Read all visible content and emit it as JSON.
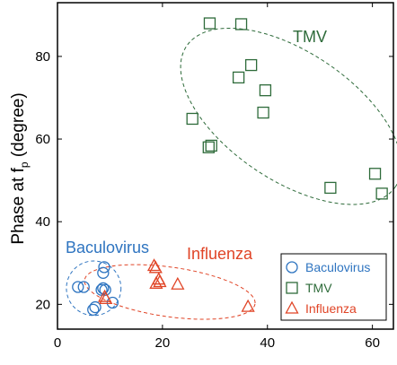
{
  "colors": {
    "baculovirus": "#2e74c0",
    "tmv": "#2e6b3a",
    "influenza": "#e04426",
    "axis": "#000000"
  },
  "chart_data": {
    "type": "scatter",
    "xlim": [
      0,
      64
    ],
    "ylim": [
      14,
      93
    ],
    "x_ticks": [
      0,
      20,
      40,
      60
    ],
    "y_ticks": [
      20,
      40,
      60,
      80
    ],
    "ylabel_main": "Phase at f",
    "ylabel_sub": "p",
    "ylabel_tail": " (degree)",
    "grid": false,
    "legend_placement": "bottom-right",
    "series": [
      {
        "name": "Baculovirus",
        "marker": "circle",
        "points": [
          [
            3.9,
            24.2
          ],
          [
            5.0,
            24.2
          ],
          [
            6.8,
            18.7
          ],
          [
            7.2,
            19.3
          ],
          [
            8.4,
            23.5
          ],
          [
            8.7,
            23.9
          ],
          [
            8.7,
            27.6
          ],
          [
            8.9,
            29.0
          ],
          [
            9.1,
            23.5
          ],
          [
            10.5,
            20.4
          ]
        ]
      },
      {
        "name": "TMV",
        "marker": "square",
        "points": [
          [
            25.7,
            64.9
          ],
          [
            28.8,
            58.0
          ],
          [
            29.0,
            88.0
          ],
          [
            29.3,
            58.4
          ],
          [
            34.5,
            74.9
          ],
          [
            35.0,
            87.8
          ],
          [
            36.9,
            77.9
          ],
          [
            39.2,
            66.4
          ],
          [
            39.6,
            71.8
          ],
          [
            52.0,
            48.2
          ],
          [
            60.5,
            51.6
          ],
          [
            61.8,
            46.8
          ]
        ]
      },
      {
        "name": "Influenza",
        "marker": "triangle",
        "points": [
          [
            9.0,
            21.8
          ],
          [
            9.2,
            21.3
          ],
          [
            18.4,
            29.3
          ],
          [
            18.7,
            28.8
          ],
          [
            18.8,
            25.0
          ],
          [
            19.3,
            26.0
          ],
          [
            19.5,
            25.4
          ],
          [
            22.9,
            24.8
          ],
          [
            36.3,
            19.4
          ]
        ]
      }
    ],
    "annotations": {
      "baculovirus": "Baculovirus",
      "influenza": "Influenza",
      "tmv": "TMV"
    }
  }
}
